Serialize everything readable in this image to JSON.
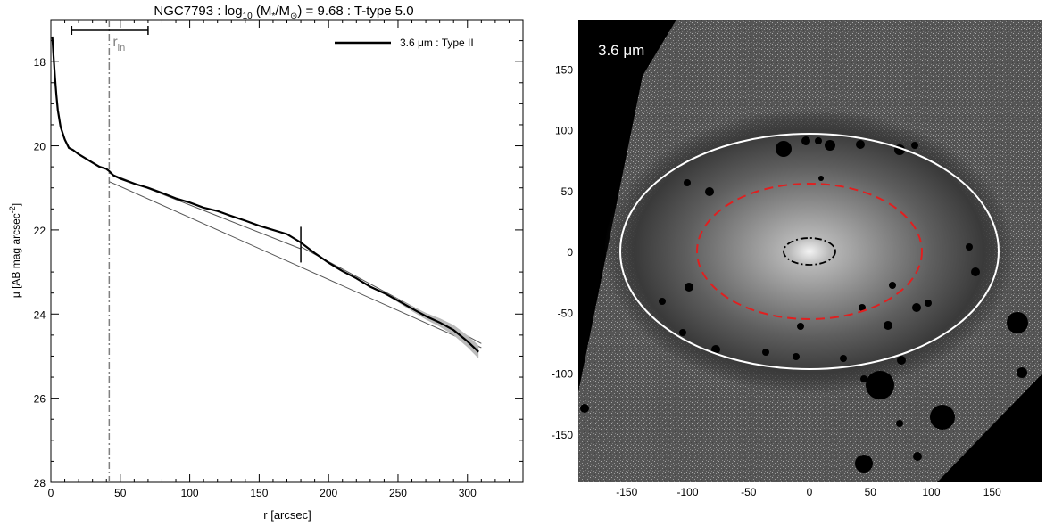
{
  "chart_data": [
    {
      "type": "line",
      "title": "NGC7793 : log",
      "title_sub": "10",
      "title_mid": " (M",
      "title_sub2": "*",
      "title_mid2": "/M",
      "title_sub3": "⊙",
      "title_end": ") = 9.68 : T-type 5.0",
      "xlabel": "r [arcsec]",
      "ylabel_main": "μ [AB mag arcsec",
      "ylabel_sup": "-2",
      "ylabel_end": "]",
      "xlim": [
        0,
        340
      ],
      "ylim": [
        28,
        17
      ],
      "y_inverted": true,
      "x_ticks": [
        0,
        50,
        100,
        150,
        200,
        250,
        300
      ],
      "y_ticks": [
        18,
        20,
        22,
        24,
        26,
        28
      ],
      "grid": false,
      "legend_position": "top-right",
      "legend": {
        "label": "3.6 μm : Type II",
        "color": "#000000"
      },
      "r_in": {
        "label": "r",
        "label_sub": "in",
        "x": 42,
        "range": [
          15,
          70
        ],
        "color": "#808080"
      },
      "break_marker": {
        "x": 180,
        "y": 22.35
      },
      "series": [
        {
          "name": "3.6 μm : Type II",
          "color": "#000000",
          "x": [
            1,
            2,
            3,
            4,
            5,
            7,
            10,
            13,
            16,
            20,
            25,
            30,
            35,
            40,
            42,
            45,
            50,
            60,
            70,
            80,
            90,
            100,
            110,
            120,
            130,
            140,
            150,
            160,
            170,
            180,
            190,
            200,
            210,
            220,
            230,
            240,
            250,
            260,
            270,
            280,
            290,
            300,
            308
          ],
          "y": [
            17.4,
            17.9,
            18.4,
            18.8,
            19.15,
            19.55,
            19.85,
            20.05,
            20.1,
            20.2,
            20.3,
            20.4,
            20.5,
            20.55,
            20.6,
            20.7,
            20.78,
            20.9,
            21.0,
            21.12,
            21.25,
            21.35,
            21.47,
            21.55,
            21.67,
            21.78,
            21.9,
            22.0,
            22.1,
            22.3,
            22.55,
            22.78,
            22.98,
            23.15,
            23.35,
            23.5,
            23.68,
            23.87,
            24.05,
            24.2,
            24.38,
            24.65,
            24.9
          ]
        }
      ],
      "fits": [
        {
          "x": [
            42,
            180
          ],
          "y": [
            20.65,
            22.45
          ]
        },
        {
          "x": [
            42,
            310
          ],
          "y": [
            20.85,
            24.8
          ]
        },
        {
          "x": [
            180,
            310
          ],
          "y": [
            22.4,
            24.7
          ]
        }
      ]
    },
    {
      "type": "image",
      "label": "3.6 μm",
      "x_ticks": [
        -150,
        -100,
        -50,
        0,
        50,
        100,
        150
      ],
      "y_ticks": [
        150,
        100,
        50,
        0,
        -50,
        -100,
        -150
      ],
      "ellipses": [
        {
          "color": "#ffffff",
          "style": "solid",
          "semi_major": 155,
          "semi_minor": 95
        },
        {
          "color": "#e02020",
          "style": "dashed",
          "semi_major": 92,
          "semi_minor": 55
        },
        {
          "color": "#000000",
          "style": "dash-dot",
          "semi_major": 22,
          "semi_minor": 11
        }
      ]
    }
  ]
}
